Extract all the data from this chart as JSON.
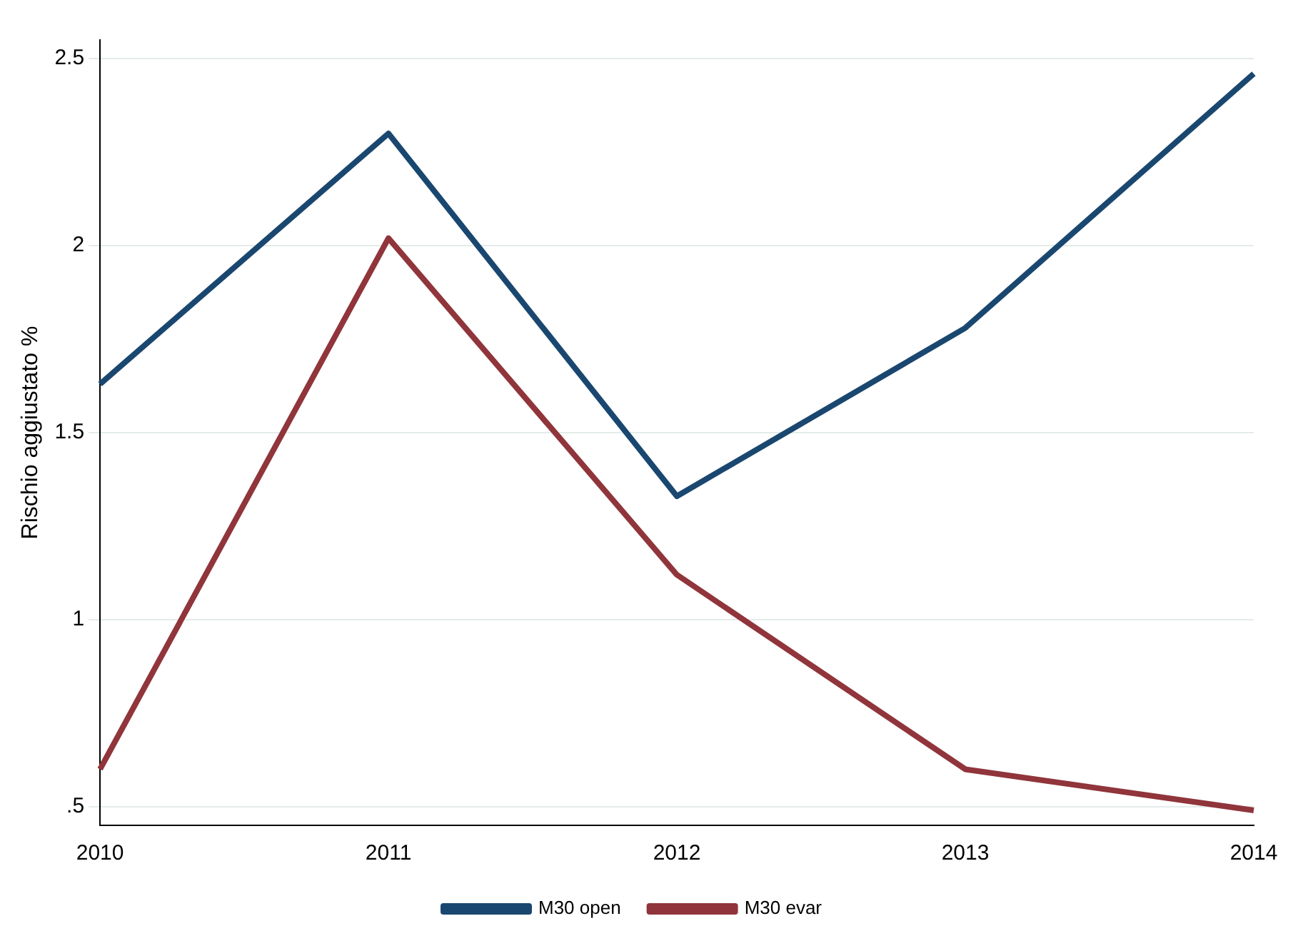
{
  "chart_data": {
    "type": "line",
    "ylabel": "Rischio aggiustato %",
    "categories": [
      "2010",
      "2011",
      "2012",
      "2013",
      "2014"
    ],
    "series": [
      {
        "name": "M30 open",
        "color": "#1a476f",
        "values": [
          1.63,
          2.3,
          1.33,
          1.78,
          2.46
        ]
      },
      {
        "name": "M30 evar",
        "color": "#90353b",
        "values": [
          0.6,
          2.02,
          1.12,
          0.6,
          0.49
        ]
      }
    ],
    "ylim": [
      0.45,
      2.55
    ],
    "yticks": [
      {
        "value": 0.5,
        "label": ".5"
      },
      1,
      1.5,
      2,
      2.5
    ],
    "grid": "y",
    "legend": "bottom",
    "marker": "none",
    "line_style": "solid"
  }
}
